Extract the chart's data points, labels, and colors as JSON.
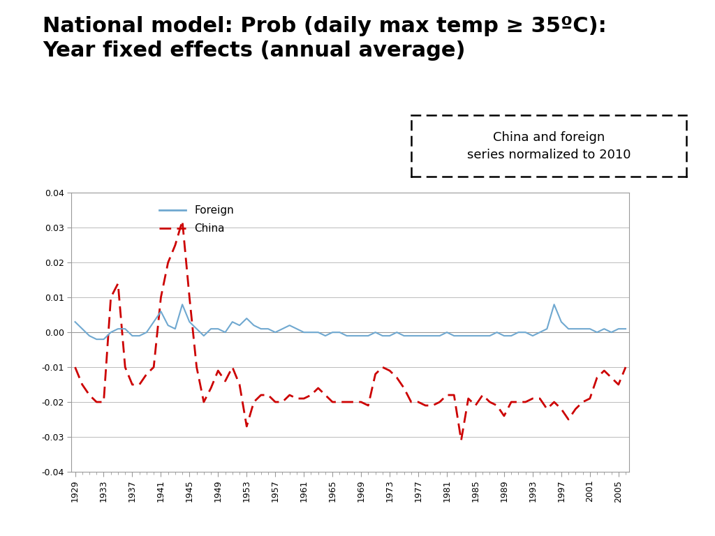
{
  "title_line1": "National model: Prob (daily max temp ≥ 35ºC):",
  "title_line2": "Year fixed effects (annual average)",
  "annotation": "China and foreign\nseries normalized to 2010",
  "years": [
    1929,
    1930,
    1931,
    1932,
    1933,
    1934,
    1935,
    1936,
    1937,
    1938,
    1939,
    1940,
    1941,
    1942,
    1943,
    1944,
    1945,
    1946,
    1947,
    1948,
    1949,
    1950,
    1951,
    1952,
    1953,
    1954,
    1955,
    1956,
    1957,
    1958,
    1959,
    1960,
    1961,
    1962,
    1963,
    1964,
    1965,
    1966,
    1967,
    1968,
    1969,
    1970,
    1971,
    1972,
    1973,
    1974,
    1975,
    1976,
    1977,
    1978,
    1979,
    1980,
    1981,
    1982,
    1983,
    1984,
    1985,
    1986,
    1987,
    1988,
    1989,
    1990,
    1991,
    1992,
    1993,
    1994,
    1995,
    1996,
    1997,
    1998,
    1999,
    2000,
    2001,
    2002,
    2003,
    2004,
    2005,
    2006
  ],
  "foreign": [
    0.003,
    0.001,
    -0.001,
    -0.002,
    -0.002,
    0.0,
    0.001,
    0.001,
    -0.001,
    -0.001,
    0.0,
    0.003,
    0.006,
    0.002,
    0.001,
    0.008,
    0.003,
    0.001,
    -0.001,
    0.001,
    0.001,
    0.0,
    0.003,
    0.002,
    0.004,
    0.002,
    0.001,
    0.001,
    0.0,
    0.001,
    0.002,
    0.001,
    0.0,
    0.0,
    0.0,
    -0.001,
    0.0,
    0.0,
    -0.001,
    -0.001,
    -0.001,
    -0.001,
    0.0,
    -0.001,
    -0.001,
    0.0,
    -0.001,
    -0.001,
    -0.001,
    -0.001,
    -0.001,
    -0.001,
    0.0,
    -0.001,
    -0.001,
    -0.001,
    -0.001,
    -0.001,
    -0.001,
    0.0,
    -0.001,
    -0.001,
    0.0,
    0.0,
    -0.001,
    0.0,
    0.001,
    0.008,
    0.003,
    0.001,
    0.001,
    0.001,
    0.001,
    0.0,
    0.001,
    0.0,
    0.001,
    0.001
  ],
  "china": [
    -0.01,
    -0.015,
    -0.018,
    -0.02,
    -0.02,
    0.01,
    0.014,
    -0.01,
    -0.015,
    -0.015,
    -0.012,
    -0.01,
    0.01,
    0.02,
    0.025,
    0.032,
    0.01,
    -0.01,
    -0.02,
    -0.016,
    -0.011,
    -0.014,
    -0.01,
    -0.015,
    -0.027,
    -0.02,
    -0.018,
    -0.018,
    -0.02,
    -0.02,
    -0.018,
    -0.019,
    -0.019,
    -0.018,
    -0.016,
    -0.018,
    -0.02,
    -0.02,
    -0.02,
    -0.02,
    -0.02,
    -0.021,
    -0.012,
    -0.01,
    -0.011,
    -0.013,
    -0.016,
    -0.02,
    -0.02,
    -0.021,
    -0.021,
    -0.02,
    -0.018,
    -0.018,
    -0.031,
    -0.019,
    -0.021,
    -0.018,
    -0.02,
    -0.021,
    -0.024,
    -0.02,
    -0.02,
    -0.02,
    -0.019,
    -0.019,
    -0.022,
    -0.02,
    -0.022,
    -0.025,
    -0.022,
    -0.02,
    -0.019,
    -0.013,
    -0.011,
    -0.013,
    -0.015,
    -0.01
  ],
  "ylim": [
    -0.04,
    0.04
  ],
  "yticks": [
    -0.04,
    -0.03,
    -0.02,
    -0.01,
    0.0,
    0.01,
    0.02,
    0.03,
    0.04
  ],
  "foreign_color": "#6fa8d0",
  "china_color": "#cc0000",
  "background_color": "#ffffff",
  "title_fontsize": 22,
  "tick_fontsize": 9,
  "legend_fontsize": 11,
  "annotation_fontsize": 13
}
